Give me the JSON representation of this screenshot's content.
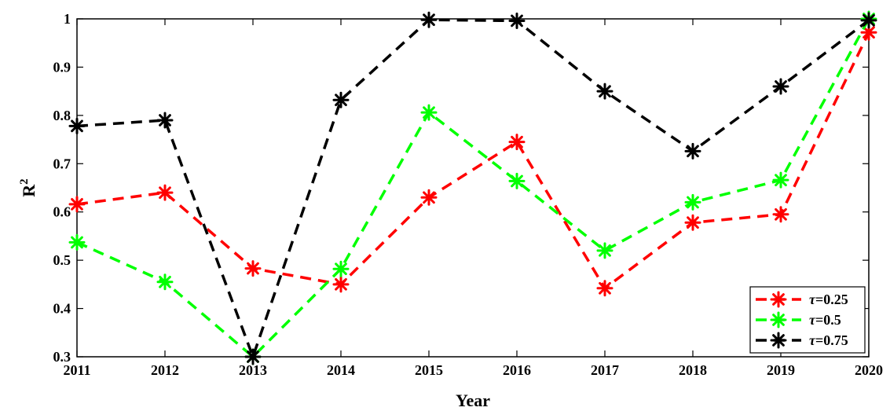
{
  "chart_data": {
    "type": "line",
    "xlabel": "Year",
    "ylabel": "R",
    "ylabel_superscript": "2",
    "x": [
      2011,
      2012,
      2013,
      2014,
      2015,
      2016,
      2017,
      2018,
      2019,
      2020
    ],
    "x_tick_labels": [
      "2011",
      "2012",
      "2013",
      "2014",
      "2015",
      "2016",
      "2017",
      "2018",
      "2019",
      "2020"
    ],
    "ylim": [
      0.3,
      1.0
    ],
    "y_ticks": [
      0.3,
      0.4,
      0.5,
      0.6,
      0.7,
      0.8,
      0.9,
      1.0
    ],
    "y_tick_labels": [
      "0.3",
      "0.4",
      "0.5",
      "0.6",
      "0.7",
      "0.8",
      "0.9",
      "1"
    ],
    "grid": false,
    "legend_position": "bottom-right",
    "series": [
      {
        "name": "τ=0.25",
        "name_symbol": "τ",
        "name_value": "=0.25",
        "color": "#ff0000",
        "line_style": "dashed",
        "marker": "asterisk",
        "values": [
          0.616,
          0.64,
          0.483,
          0.45,
          0.63,
          0.745,
          0.442,
          0.578,
          0.595,
          0.972
        ]
      },
      {
        "name": "τ=0.5",
        "name_symbol": "τ",
        "name_value": "=0.5",
        "color": "#00ff00",
        "line_style": "dashed",
        "marker": "asterisk",
        "values": [
          0.537,
          0.455,
          0.3,
          0.482,
          0.806,
          0.664,
          0.52,
          0.62,
          0.666,
          1.0
        ]
      },
      {
        "name": "τ=0.75",
        "name_symbol": "τ",
        "name_value": "=0.75",
        "color": "#000000",
        "line_style": "dashed",
        "marker": "asterisk",
        "values": [
          0.778,
          0.79,
          0.3,
          0.832,
          0.998,
          0.996,
          0.85,
          0.726,
          0.86,
          0.997
        ]
      }
    ]
  }
}
